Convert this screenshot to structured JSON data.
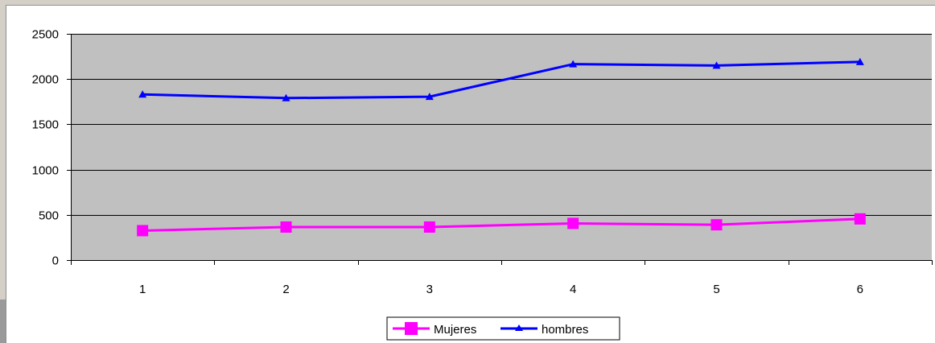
{
  "chart_data": {
    "type": "line",
    "categories": [
      "1",
      "2",
      "3",
      "4",
      "5",
      "6"
    ],
    "series": [
      {
        "name": "Mujeres",
        "values": [
          325,
          365,
          365,
          405,
          390,
          455
        ],
        "color": "#ff00ff",
        "marker": "square"
      },
      {
        "name": "hombres",
        "values": [
          1830,
          1790,
          1805,
          2165,
          2150,
          2190
        ],
        "color": "#0000ff",
        "marker": "triangle"
      }
    ],
    "ylim": [
      0,
      2500
    ],
    "yticks": [
      0,
      500,
      1000,
      1500,
      2000,
      2500
    ],
    "grid": true,
    "plot_background": "#c0c0c0",
    "legend_position": "bottom",
    "title": "",
    "xlabel": "",
    "ylabel": ""
  }
}
